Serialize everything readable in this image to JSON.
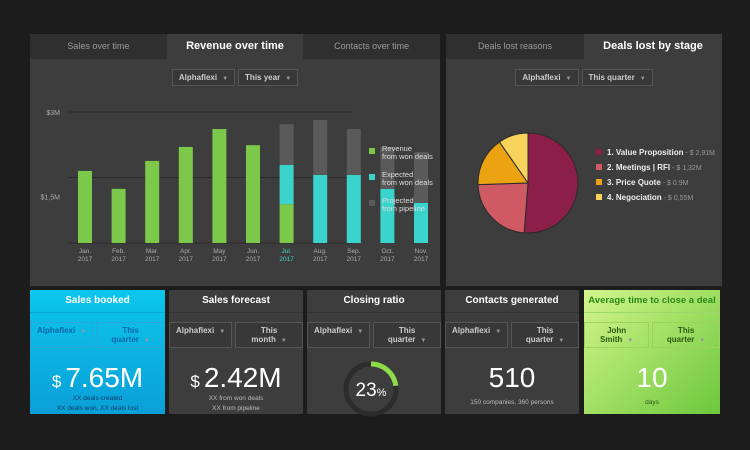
{
  "revenue_panel": {
    "tabs": [
      "Sales over time",
      "Revenue over time",
      "Contacts over time"
    ],
    "active_tab": 1,
    "filters": [
      "Alphaflexi",
      "This year"
    ]
  },
  "deals_panel": {
    "tabs": [
      "Deals lost reasons",
      "Deals lost by stage"
    ],
    "active_tab": 1,
    "filters": [
      "Alphaflexi",
      "This quarter"
    ]
  },
  "chart_data": [
    {
      "type": "bar",
      "stacked": true,
      "yticks": [
        "$3M",
        "$1,5M"
      ],
      "ylim": [
        0,
        3
      ],
      "grid": true,
      "legend": "right",
      "categories": [
        [
          "Jan.",
          "2017"
        ],
        [
          "Feb.",
          "2017"
        ],
        [
          "Mar.",
          "2017"
        ],
        [
          "Apr.",
          "2017"
        ],
        [
          "May",
          "2017"
        ],
        [
          "Jun.",
          "2017"
        ],
        [
          "Jul.",
          "2017"
        ],
        [
          "Aug.",
          "2017"
        ],
        [
          "Sep.",
          "2017"
        ],
        [
          "Oct.",
          "2017"
        ],
        [
          "Nov.",
          "2017"
        ],
        [
          "Dec.",
          "2017"
        ]
      ],
      "highlight_category": 6,
      "series": [
        {
          "name": "Revenue from won deals",
          "color": "#7cc84a",
          "values": [
            1.65,
            1.24,
            1.88,
            2.2,
            2.61,
            2.24,
            0.89,
            0,
            0,
            0,
            0,
            0
          ]
        },
        {
          "name": "Expected from won deals",
          "color": "#3ad4cc",
          "values": [
            0,
            0,
            0,
            0,
            0,
            0,
            0.9,
            1.56,
            1.56,
            1.24,
            0.92,
            0.6
          ]
        },
        {
          "name": "Projected from pipeline",
          "color": "#5a5a5a",
          "values": [
            0,
            0,
            0,
            0,
            0,
            0,
            0.93,
            1.26,
            1.05,
            0.96,
            1.16,
            1.05
          ]
        }
      ],
      "legend_lines": [
        [
          "Revenue",
          "from won deals"
        ],
        [
          "Expected",
          "from won deals"
        ],
        [
          "Projected",
          "from pipeline"
        ]
      ]
    },
    {
      "type": "pie",
      "slices": [
        {
          "label": "1. Value Proposition",
          "value_text": "$ 2,91M",
          "value": 2.91,
          "color": "#8c1f48"
        },
        {
          "label": "2. Meetings | RFI",
          "value_text": "$ 1,32M",
          "value": 1.32,
          "color": "#d05a64"
        },
        {
          "label": "3. Price Quote",
          "value_text": "$ 0.9M",
          "value": 0.9,
          "color": "#eba312"
        },
        {
          "label": "4. Negociation",
          "value_text": "$ 0,55M",
          "value": 0.55,
          "color": "#f7d35b"
        }
      ]
    }
  ],
  "cards": [
    {
      "title": "Sales booked",
      "filters": [
        "Alphaflexi",
        "This quarter"
      ],
      "currency": "$",
      "value": "7.65M",
      "sub": [
        "XX deals created",
        "XX deals won, XX deals lost"
      ]
    },
    {
      "title": "Sales forecast",
      "filters": [
        "Alphaflexi",
        "This month"
      ],
      "currency": "$",
      "value": "2.42M",
      "sub": [
        "XX from won deals",
        "XX from pipeline"
      ]
    },
    {
      "title": "Closing ratio",
      "filters": [
        "Alphaflexi",
        "This quarter"
      ],
      "value": "23",
      "unit": "%",
      "progress": 0.23
    },
    {
      "title": "Contacts generated",
      "filters": [
        "Alphaflexi",
        "This quarter"
      ],
      "value": "510",
      "sub": [
        "150 companies, 360 persons"
      ]
    },
    {
      "title": "Average time to close a deal",
      "filters": [
        "John Smith",
        "This quarter"
      ],
      "value": "10",
      "sub": [
        "days"
      ]
    }
  ]
}
